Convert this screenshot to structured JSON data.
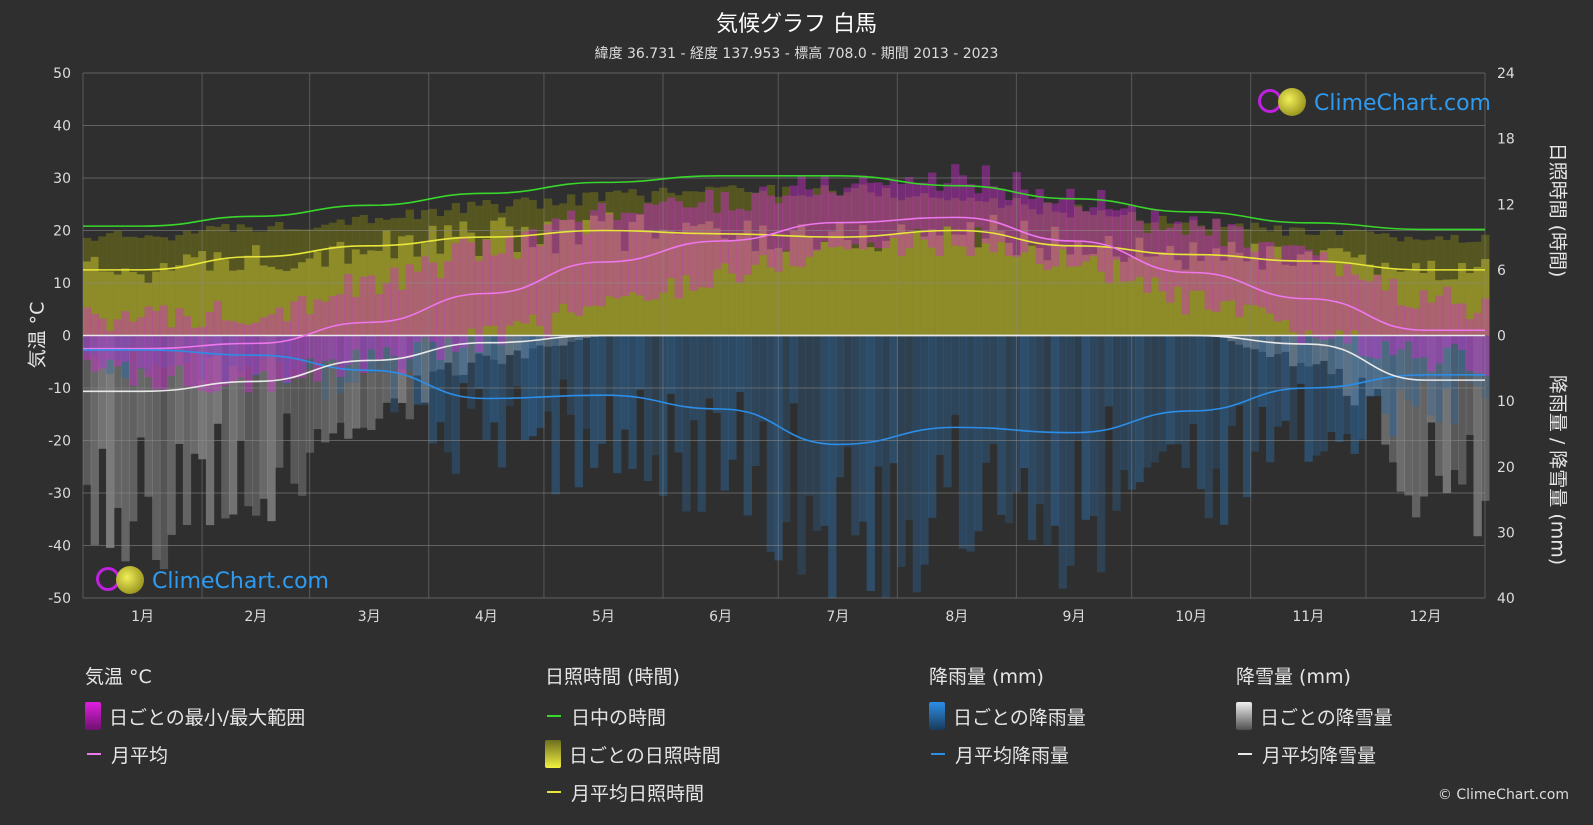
{
  "title": "気候グラフ 白馬",
  "subtitle": "緯度 36.731 - 経度 137.953 - 標高 708.0 - 期間 2013 - 2023",
  "logo_text": "ClimeChart.com",
  "copyright": "© ClimeChart.com",
  "chart_data": {
    "type": "line",
    "categories": [
      "1月",
      "2月",
      "3月",
      "4月",
      "5月",
      "6月",
      "7月",
      "8月",
      "9月",
      "10月",
      "11月",
      "12月"
    ],
    "axes": {
      "left": {
        "label": "気温 °C",
        "ylim": [
          -50,
          50
        ],
        "ticks": [
          "50",
          "40",
          "30",
          "20",
          "10",
          "0",
          "-10",
          "-20",
          "-30",
          "-40",
          "-50"
        ]
      },
      "right_top": {
        "label": "日照時間 (時間)",
        "ylim": [
          0,
          24
        ],
        "ticks": [
          "24",
          "18",
          "12",
          "6",
          "0"
        ]
      },
      "right_bottom": {
        "label": "降雨量 / 降雪量 (mm)",
        "ylim": [
          0,
          40
        ],
        "ticks": [
          "10",
          "20",
          "30",
          "40"
        ]
      }
    },
    "grid": true,
    "series": [
      {
        "name": "日中の時間",
        "axis": "right_top",
        "color": "#39d62b",
        "values": [
          10.0,
          10.9,
          11.9,
          13.0,
          14.0,
          14.6,
          14.6,
          13.7,
          12.5,
          11.3,
          10.3,
          9.7
        ]
      },
      {
        "name": "月平均日照時間",
        "axis": "right_top",
        "color": "#e7e63a",
        "values": [
          6.0,
          7.2,
          8.2,
          9.0,
          9.6,
          9.3,
          9.0,
          9.6,
          8.2,
          7.4,
          6.8,
          6.0
        ]
      },
      {
        "name": "月平均",
        "axis": "left",
        "color": "#ee77ee",
        "values": [
          -2.5,
          -1.5,
          2.5,
          8.0,
          14.0,
          18.0,
          21.5,
          22.5,
          18.0,
          12.0,
          7.0,
          1.0
        ]
      },
      {
        "name": "月平均降雨量",
        "axis": "right_bottom",
        "color": "#2c8ee8",
        "values": [
          2.2,
          3.0,
          5.3,
          9.6,
          9.1,
          11.2,
          16.6,
          14.0,
          14.8,
          11.5,
          8.0,
          6.0
        ]
      },
      {
        "name": "月平均降雪量",
        "axis": "right_bottom",
        "color": "#e8e8e8",
        "values": [
          8.5,
          7.0,
          3.8,
          1.1,
          0.0,
          0.0,
          0.0,
          0.0,
          0.0,
          0.0,
          1.3,
          6.8
        ]
      }
    ],
    "ranges": {
      "temp_max": [
        3,
        5,
        10,
        17,
        23,
        26,
        29,
        30,
        26,
        20,
        14,
        7
      ],
      "temp_min": [
        -8,
        -8,
        -5,
        0,
        6,
        12,
        17,
        18,
        14,
        6,
        0,
        -4
      ]
    }
  },
  "legend": [
    {
      "heading": "気温 °C",
      "items": [
        {
          "label": "日ごとの最小/最大範囲",
          "swatch": "box",
          "color": "#e020e0"
        },
        {
          "label": "月平均",
          "swatch": "line",
          "color": "#ee77ee"
        }
      ]
    },
    {
      "heading": "日照時間 (時間)",
      "items": [
        {
          "label": "日中の時間",
          "swatch": "line",
          "color": "#39d62b"
        },
        {
          "label": "日ごとの日照時間",
          "swatch": "box",
          "color": "#d8d838"
        },
        {
          "label": "月平均日照時間",
          "swatch": "line",
          "color": "#e7e63a"
        }
      ]
    },
    {
      "heading": "降雨量 (mm)",
      "items": [
        {
          "label": "日ごとの降雨量",
          "swatch": "box",
          "color": "#2c8ee8"
        },
        {
          "label": "月平均降雨量",
          "swatch": "line",
          "color": "#2c8ee8"
        }
      ]
    },
    {
      "heading": "降雪量 (mm)",
      "items": [
        {
          "label": "日ごとの降雪量",
          "swatch": "box",
          "color": "#e8e8e8"
        },
        {
          "label": "月平均降雪量",
          "swatch": "line",
          "color": "#e8e8e8"
        }
      ]
    }
  ]
}
